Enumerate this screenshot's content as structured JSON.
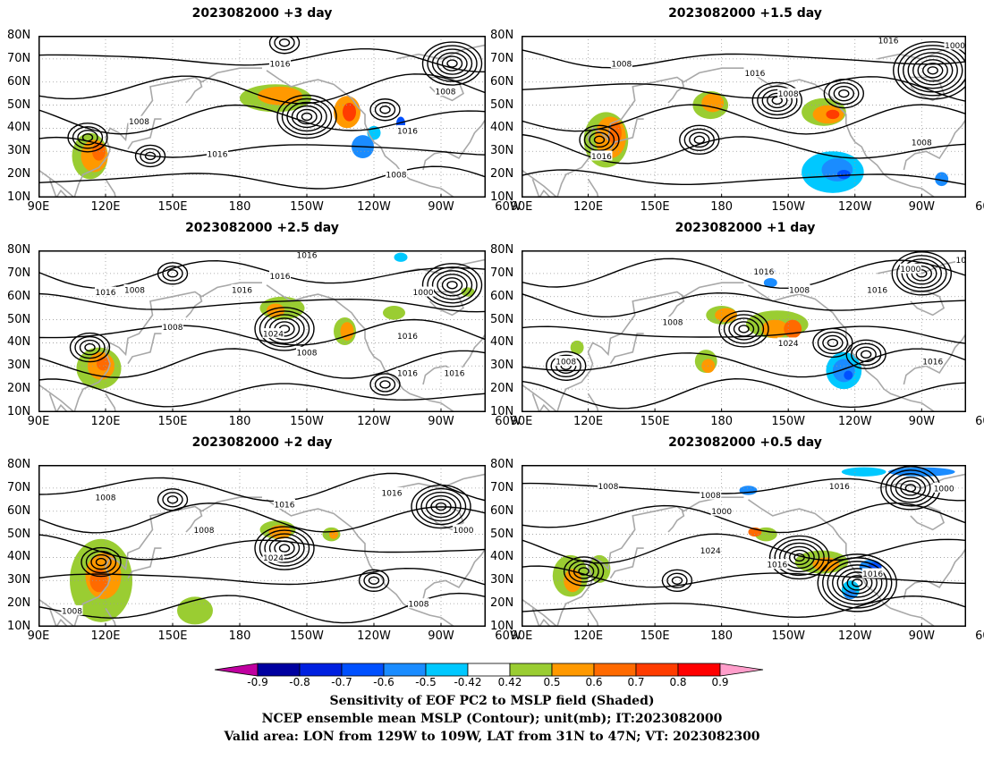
{
  "panels": [
    {
      "id": "p1",
      "title": "2023082000  +3 day"
    },
    {
      "id": "p2",
      "title": "2023082000  +1.5 day"
    },
    {
      "id": "p3",
      "title": "2023082000  +2.5 day"
    },
    {
      "id": "p4",
      "title": "2023082000  +1 day"
    },
    {
      "id": "p5",
      "title": "2023082000  +2 day"
    },
    {
      "id": "p6",
      "title": "2023082000  +0.5 day"
    }
  ],
  "lat_ticks": [
    "80N",
    "70N",
    "60N",
    "50N",
    "40N",
    "30N",
    "20N",
    "10N"
  ],
  "lon_ticks": [
    "90E",
    "120E",
    "150E",
    "180",
    "150W",
    "120W",
    "90W",
    "60W"
  ],
  "isobar_labels": {
    "p1": [
      "1016",
      "1008",
      "1016",
      "1008",
      "1016",
      "1008"
    ],
    "p2": [
      "1008",
      "1000",
      "1016",
      "1016",
      "1008",
      "1016",
      "1008"
    ],
    "p3": [
      "1016",
      "1008",
      "1016",
      "1008",
      "1016",
      "1016",
      "1016",
      "1024",
      "1016",
      "1008",
      "1016",
      "1000"
    ],
    "p4": [
      "1016",
      "1000",
      "1016",
      "1008",
      "1016",
      "1008",
      "1024",
      "1008",
      "1016"
    ],
    "p5": [
      "1008",
      "1016",
      "1016",
      "1008",
      "1000",
      "1024",
      "1008",
      "1008"
    ],
    "p6": [
      "1008",
      "1008",
      "1000",
      "1000",
      "1016",
      "1024",
      "1016",
      "1016"
    ]
  },
  "colorbar": {
    "labels": [
      "-0.9",
      "-0.8",
      "-0.7",
      "-0.6",
      "-0.5",
      "-0.42",
      "0.42",
      "0.5",
      "0.6",
      "0.7",
      "0.8",
      "0.9"
    ],
    "colors": [
      "#0000a0",
      "#0020e0",
      "#0050ff",
      "#1a8cff",
      "#00c8ff",
      "#ffffff",
      "#9acd32",
      "#ff9900",
      "#ff6a00",
      "#ff3c00",
      "#ff0000"
    ],
    "low_end_color": "#c000a0",
    "high_end_color": "#ff9ecb"
  },
  "footer": {
    "line1": "Sensitivity of EOF PC2 to MSLP field (Shaded)",
    "line2": "NCEP ensemble mean MSLP (Contour); unit(mb); IT:2023082000",
    "line3": "Valid area: LON from 129W to 109W, LAT from 31N to 47N; VT: 2023082300"
  }
}
